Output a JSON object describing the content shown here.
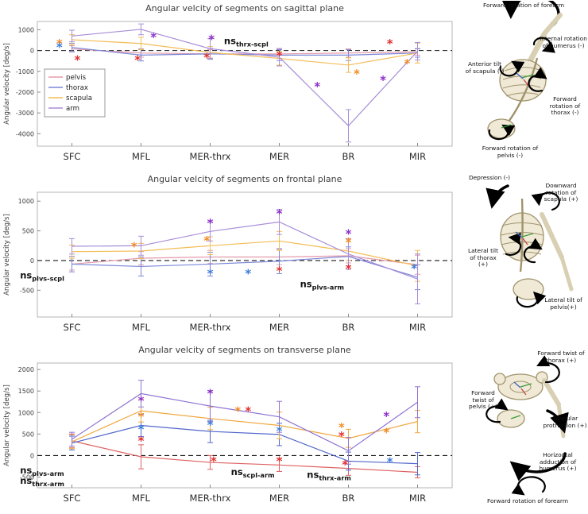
{
  "star_colors": {
    "pelvis": "#e03030",
    "thorax": "#3d7ad9",
    "scapula": "#f08c28",
    "arm": "#8b2fc8"
  },
  "chart_data": [
    {
      "type": "line",
      "title": "Angular velcity of segments on sagittal plane",
      "ylabel": "Angular velocity [deg/s]",
      "categories": [
        "SFC",
        "MFL",
        "MER-thrx",
        "MER",
        "BR",
        "MIR"
      ],
      "ylim": [
        -4600,
        1400
      ],
      "yticks": [
        1000,
        0,
        -1000,
        -2000,
        -3000,
        -4000
      ],
      "zero_line": "dashed",
      "legend": true,
      "legend_entries": [
        "pelvis",
        "thorax",
        "scapula",
        "arm"
      ],
      "series": [
        {
          "name": "pelvis",
          "color": "#e59aab",
          "values": [
            80,
            -120,
            -160,
            -160,
            -120,
            -60
          ],
          "errors": [
            150,
            200,
            200,
            220,
            200,
            160
          ]
        },
        {
          "name": "thorax",
          "color": "#7b87d7",
          "values": [
            150,
            -220,
            -160,
            -220,
            -220,
            -120
          ],
          "errors": [
            200,
            280,
            260,
            260,
            260,
            200
          ]
        },
        {
          "name": "scapula",
          "color": "#f3bd55",
          "values": [
            520,
            340,
            -90,
            -380,
            -700,
            -120
          ],
          "errors": [
            240,
            300,
            280,
            320,
            350,
            480
          ]
        },
        {
          "name": "arm",
          "color": "#a78dd8",
          "values": [
            700,
            1020,
            90,
            -320,
            -3620,
            -30
          ],
          "errors": [
            280,
            260,
            480,
            420,
            780,
            420
          ]
        }
      ],
      "annotations": [
        {
          "x": -0.18,
          "y": 320,
          "c": "scapula"
        },
        {
          "x": -0.18,
          "y": 130,
          "c": "thorax"
        },
        {
          "x": 0.08,
          "y": -480,
          "c": "pelvis"
        },
        {
          "x": 1.18,
          "y": 620,
          "c": "arm"
        },
        {
          "x": 0.95,
          "y": -470,
          "c": "pelvis"
        },
        {
          "x": 2.02,
          "y": 520,
          "c": "arm"
        },
        {
          "x": 1.95,
          "y": -360,
          "c": "pelvis"
        },
        {
          "x": 3.0,
          "y": -260,
          "c": "pelvis"
        },
        {
          "x": 3.55,
          "y": -1750,
          "c": "arm"
        },
        {
          "x": 4.12,
          "y": -1150,
          "c": "scapula"
        },
        {
          "x": 4.5,
          "y": -1450,
          "c": "arm"
        },
        {
          "x": 4.6,
          "y": 320,
          "c": "pelvis"
        },
        {
          "x": 4.85,
          "y": -650,
          "c": "scapula"
        }
      ],
      "ns_labels": [
        {
          "x": 2.2,
          "y": 320,
          "text": "ns",
          "sub": "thrx-scpl"
        }
      ]
    },
    {
      "type": "line",
      "title": "Angular velcity of segments on frontal plane",
      "ylabel": "Angular velocity [deg/s]",
      "categories": [
        "SFC",
        "MFL",
        "MER-thrx",
        "MER",
        "BR",
        "MIR"
      ],
      "ylim": [
        -950,
        1150
      ],
      "yticks": [
        1000,
        500,
        0,
        -500
      ],
      "zero_line": "dashed",
      "legend": false,
      "series": [
        {
          "name": "pelvis",
          "color": "#e59aab",
          "values": [
            -60,
            40,
            60,
            60,
            80,
            -70
          ],
          "errors": [
            100,
            110,
            110,
            130,
            120,
            160
          ]
        },
        {
          "name": "thorax",
          "color": "#7b87d7",
          "values": [
            -60,
            -100,
            -60,
            -10,
            70,
            -280
          ],
          "errors": [
            130,
            160,
            200,
            210,
            160,
            210
          ]
        },
        {
          "name": "scapula",
          "color": "#f3bd55",
          "values": [
            150,
            160,
            250,
            330,
            160,
            -90
          ],
          "errors": [
            110,
            130,
            150,
            160,
            160,
            260
          ]
        },
        {
          "name": "arm",
          "color": "#a78dd8",
          "values": [
            240,
            250,
            490,
            650,
            110,
            -310
          ],
          "errors": [
            130,
            160,
            160,
            210,
            260,
            420
          ]
        }
      ],
      "annotations": [
        {
          "x": 0.9,
          "y": 230,
          "c": "scapula"
        },
        {
          "x": 2.0,
          "y": 620,
          "c": "arm"
        },
        {
          "x": 1.95,
          "y": 330,
          "c": "scapula"
        },
        {
          "x": 2.0,
          "y": -230,
          "c": "thorax"
        },
        {
          "x": 3.0,
          "y": 780,
          "c": "arm"
        },
        {
          "x": 3.0,
          "y": -180,
          "c": "pelvis"
        },
        {
          "x": 2.55,
          "y": -230,
          "c": "thorax"
        },
        {
          "x": 4.0,
          "y": 440,
          "c": "arm"
        },
        {
          "x": 4.0,
          "y": 300,
          "c": "scapula"
        },
        {
          "x": 4.0,
          "y": -150,
          "c": "pelvis"
        },
        {
          "x": 4.95,
          "y": -140,
          "c": "thorax"
        }
      ],
      "ns_labels": [
        {
          "x": -0.75,
          "y": -300,
          "text": "ns",
          "sub": "plvs-scpl"
        },
        {
          "x": 3.3,
          "y": -450,
          "text": "ns",
          "sub": "plvs-arm"
        }
      ]
    },
    {
      "type": "line",
      "title": "Angular velcity of segments on transverse plane",
      "ylabel": "Angular velocity [deg/s]",
      "categories": [
        "SFC",
        "MFL",
        "MER-thrx",
        "MER",
        "BR",
        "MIR"
      ],
      "ylim": [
        -750,
        2150
      ],
      "yticks": [
        2000,
        1500,
        1000,
        500,
        0,
        -500
      ],
      "zero_line": "dashed",
      "legend": false,
      "series": [
        {
          "name": "pelvis",
          "color": "#de6262",
          "values": [
            340,
            -30,
            -160,
            -220,
            -300,
            -390
          ],
          "errors": [
            160,
            280,
            160,
            150,
            160,
            130
          ]
        },
        {
          "name": "thorax",
          "color": "#5166cc",
          "values": [
            290,
            700,
            560,
            490,
            -130,
            -190
          ],
          "errors": [
            160,
            260,
            260,
            260,
            210,
            260
          ]
        },
        {
          "name": "scapula",
          "color": "#f0a840",
          "values": [
            320,
            1040,
            860,
            700,
            400,
            790
          ],
          "errors": [
            160,
            260,
            260,
            310,
            210,
            260
          ]
        },
        {
          "name": "arm",
          "color": "#8f73d2",
          "values": [
            380,
            1440,
            1150,
            900,
            110,
            1240
          ],
          "errors": [
            160,
            310,
            360,
            360,
            310,
            360
          ]
        }
      ],
      "annotations": [
        {
          "x": 1.0,
          "y": 1260,
          "c": "arm"
        },
        {
          "x": 1.0,
          "y": 890,
          "c": "scapula"
        },
        {
          "x": 1.0,
          "y": 600,
          "c": "thorax"
        },
        {
          "x": 1.0,
          "y": 330,
          "c": "pelvis"
        },
        {
          "x": 2.0,
          "y": 1430,
          "c": "arm"
        },
        {
          "x": 2.0,
          "y": 700,
          "c": "thorax"
        },
        {
          "x": 2.05,
          "y": -140,
          "c": "pelvis"
        },
        {
          "x": 2.4,
          "y": 1020,
          "c": "scapula"
        },
        {
          "x": 2.55,
          "y": 1020,
          "c": "pelvis"
        },
        {
          "x": 3.0,
          "y": 560,
          "c": "thorax"
        },
        {
          "x": 3.0,
          "y": -140,
          "c": "pelvis"
        },
        {
          "x": 3.9,
          "y": 640,
          "c": "scapula"
        },
        {
          "x": 3.9,
          "y": 440,
          "c": "pelvis"
        },
        {
          "x": 3.95,
          "y": -220,
          "c": "pelvis"
        },
        {
          "x": 4.55,
          "y": 900,
          "c": "arm"
        },
        {
          "x": 4.55,
          "y": 520,
          "c": "scapula"
        },
        {
          "x": 4.6,
          "y": -160,
          "c": "thorax"
        }
      ],
      "ns_labels": [
        {
          "x": -0.75,
          "y": -420,
          "text": "ns",
          "sub": "plvs-arm"
        },
        {
          "x": -0.75,
          "y": -660,
          "text": "ns",
          "sub": "thrx-arm"
        },
        {
          "x": 2.3,
          "y": -450,
          "text": "ns",
          "sub": "scpl-arm"
        },
        {
          "x": 3.4,
          "y": -520,
          "text": "ns",
          "sub": "thrx-arm"
        }
      ]
    }
  ],
  "illustrations": [
    {
      "plane": "sagittal",
      "labels": [
        "Forward rotation of forearm",
        "Internal rotation of humerus (-)",
        "Anterior tilt of scapula (-)",
        "Forward rotation of thorax (-)",
        "Forward rotation of pelvis (-)"
      ]
    },
    {
      "plane": "frontal",
      "labels": [
        "Depression (-)",
        "Downward rotation of scapula (+)",
        "Lateral tilt of thorax (+)",
        "Lateral tilt of pelvis(+)"
      ]
    },
    {
      "plane": "transverse",
      "labels": [
        "Forward twist of thorax (+)",
        "Forward twist of pelvis (+)",
        "Scapular protraction (+)",
        "Horizontal adduction of humerus (+)",
        "Forward rotation of forearm"
      ]
    }
  ]
}
